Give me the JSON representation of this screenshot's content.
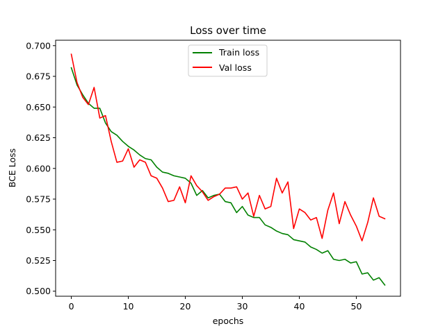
{
  "chart_data": {
    "type": "line",
    "title": "Loss over time",
    "xlabel": "epochs",
    "ylabel": "BCE Loss",
    "xlim": [
      -2.75,
      57.75
    ],
    "ylim": [
      0.4959,
      0.7044
    ],
    "xticks": [
      0,
      10,
      20,
      30,
      40,
      50
    ],
    "yticks": [
      0.5,
      0.525,
      0.55,
      0.575,
      0.6,
      0.625,
      0.65,
      0.675,
      0.7
    ],
    "ytick_labels": [
      "0.500",
      "0.525",
      "0.550",
      "0.575",
      "0.600",
      "0.625",
      "0.650",
      "0.675",
      "0.700"
    ],
    "grid": false,
    "legend_position": "upper center",
    "x": [
      0,
      1,
      2,
      3,
      4,
      5,
      6,
      7,
      8,
      9,
      10,
      11,
      12,
      13,
      14,
      15,
      16,
      17,
      18,
      19,
      20,
      21,
      22,
      23,
      24,
      25,
      26,
      27,
      28,
      29,
      30,
      31,
      32,
      33,
      34,
      35,
      36,
      37,
      38,
      39,
      40,
      41,
      42,
      43,
      44,
      45,
      46,
      47,
      48,
      49,
      50,
      51,
      52,
      53,
      54,
      55
    ],
    "series": [
      {
        "name": "Train loss",
        "color": "#008000",
        "values": [
          0.682,
          0.668,
          0.66,
          0.653,
          0.649,
          0.649,
          0.637,
          0.63,
          0.627,
          0.622,
          0.618,
          0.615,
          0.611,
          0.608,
          0.607,
          0.601,
          0.597,
          0.596,
          0.594,
          0.593,
          0.592,
          0.588,
          0.578,
          0.582,
          0.576,
          0.578,
          0.579,
          0.573,
          0.572,
          0.564,
          0.569,
          0.562,
          0.56,
          0.56,
          0.554,
          0.552,
          0.549,
          0.547,
          0.546,
          0.542,
          0.541,
          0.54,
          0.536,
          0.534,
          0.531,
          0.533,
          0.526,
          0.525,
          0.526,
          0.523,
          0.524,
          0.514,
          0.515,
          0.509,
          0.511,
          0.505
        ]
      },
      {
        "name": "Val loss",
        "color": "#ff0000",
        "values": [
          0.693,
          0.67,
          0.658,
          0.652,
          0.666,
          0.641,
          0.643,
          0.622,
          0.605,
          0.606,
          0.616,
          0.601,
          0.607,
          0.605,
          0.594,
          0.592,
          0.584,
          0.573,
          0.574,
          0.585,
          0.572,
          0.594,
          0.586,
          0.581,
          0.574,
          0.577,
          0.579,
          0.584,
          0.584,
          0.585,
          0.575,
          0.58,
          0.561,
          0.578,
          0.567,
          0.569,
          0.592,
          0.58,
          0.589,
          0.551,
          0.567,
          0.564,
          0.558,
          0.56,
          0.543,
          0.566,
          0.58,
          0.555,
          0.573,
          0.562,
          0.553,
          0.541,
          0.556,
          0.576,
          0.561,
          0.559
        ]
      }
    ]
  }
}
